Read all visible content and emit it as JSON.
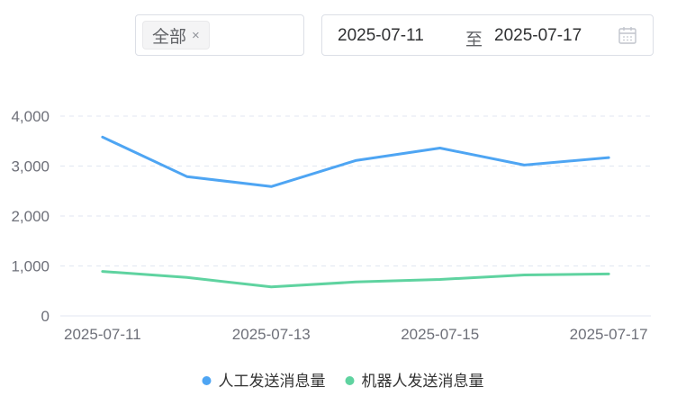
{
  "filters": {
    "tag_label": "全部",
    "tag_close": "×",
    "date_start": "2025-07-11",
    "date_separator": "至",
    "date_end": "2025-07-17"
  },
  "chart_data": {
    "type": "line",
    "x": [
      "2025-07-11",
      "2025-07-12",
      "2025-07-13",
      "2025-07-14",
      "2025-07-15",
      "2025-07-16",
      "2025-07-17"
    ],
    "x_tick_labels": [
      "2025-07-11",
      "2025-07-13",
      "2025-07-15",
      "2025-07-17"
    ],
    "y_ticks": [
      "0",
      "1,000",
      "2,000",
      "3,000",
      "4,000"
    ],
    "ylim": [
      0,
      4000
    ],
    "grid": true,
    "legend_position": "bottom",
    "series": [
      {
        "name": "人工发送消息量",
        "color": "#4ea5f3",
        "values": [
          3580,
          2790,
          2590,
          3110,
          3360,
          3020,
          3170
        ]
      },
      {
        "name": "机器人发送消息量",
        "color": "#5fd3a0",
        "values": [
          890,
          770,
          580,
          680,
          730,
          820,
          840
        ]
      }
    ]
  }
}
